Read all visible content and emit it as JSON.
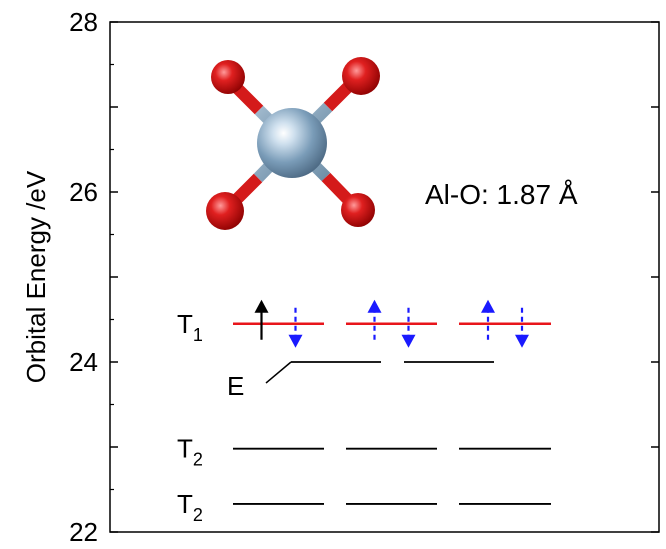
{
  "chart_data": {
    "type": "energy-level-diagram",
    "ylabel": "Orbital Energy /eV",
    "ylim": [
      22,
      28
    ],
    "yticks": [
      "22",
      "24",
      "26",
      "28"
    ],
    "levels": [
      {
        "label": "T",
        "subscript": "1",
        "energy": 24.45,
        "degeneracy": 3,
        "color": "#e8151b",
        "electrons": [
          {
            "orbital": 0,
            "spin": "up",
            "style": "solid",
            "color": "#000000"
          },
          {
            "orbital": 0,
            "spin": "down",
            "style": "dashed",
            "color": "#1a1aff"
          },
          {
            "orbital": 1,
            "spin": "up",
            "style": "dashed",
            "color": "#1a1aff"
          },
          {
            "orbital": 1,
            "spin": "down",
            "style": "dashed",
            "color": "#1a1aff"
          },
          {
            "orbital": 2,
            "spin": "up",
            "style": "dashed",
            "color": "#1a1aff"
          },
          {
            "orbital": 2,
            "spin": "down",
            "style": "dashed",
            "color": "#1a1aff"
          }
        ]
      },
      {
        "label": "E",
        "subscript": "",
        "energy": 24.0,
        "degeneracy": 2,
        "color": "#000000",
        "electrons": []
      },
      {
        "label": "T",
        "subscript": "2",
        "energy": 22.98,
        "degeneracy": 3,
        "color": "#000000",
        "electrons": []
      },
      {
        "label": "T",
        "subscript": "2",
        "energy": 22.33,
        "degeneracy": 3,
        "color": "#000000",
        "electrons": []
      }
    ],
    "annotation": "Al-O: 1.87 Å",
    "structure": {
      "center_atom": "Al",
      "ligand_atom": "O",
      "center_color": "#7a9cb8",
      "ligand_color": "#d41a1a"
    }
  }
}
